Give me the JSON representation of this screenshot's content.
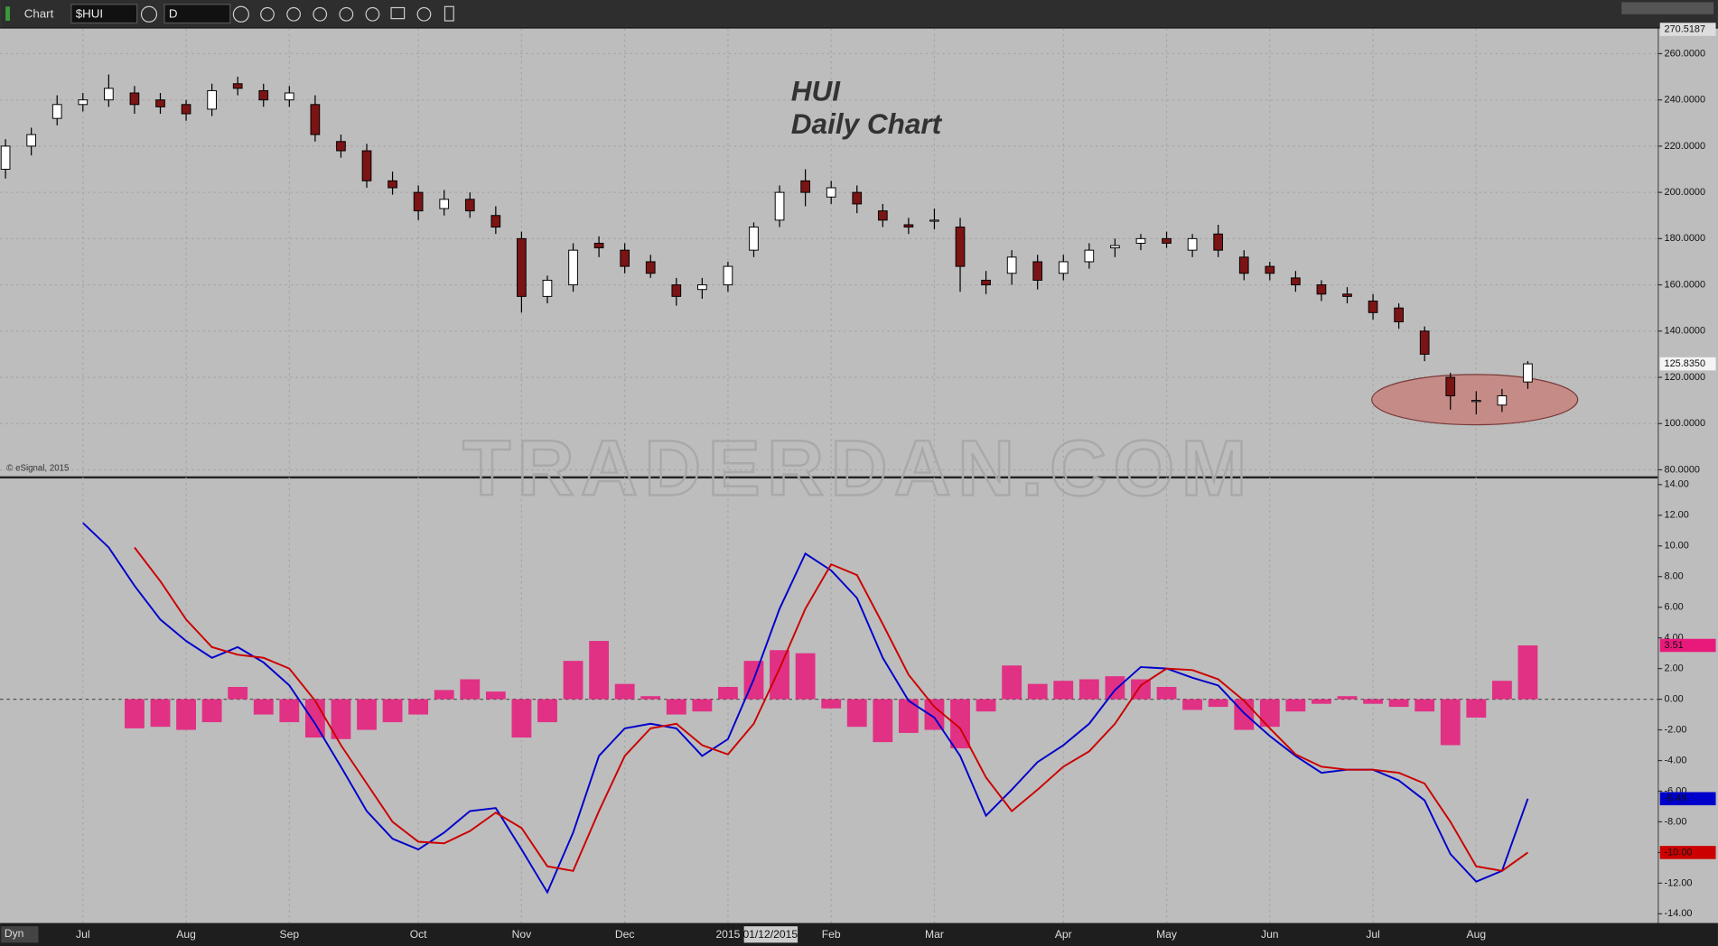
{
  "toolbar": {
    "title": "Chart",
    "symbol": "$HUI",
    "interval": "D"
  },
  "footer": {
    "mode": "Dyn",
    "cursor_date": "01/12/2015"
  },
  "chart_data": [
    {
      "type": "candlestick",
      "title": "HUI",
      "subtitle": "Daily Chart",
      "watermark": "TRADERDAN.COM",
      "source": "© eSignal, 2015",
      "categories": [
        null,
        null,
        null,
        "Jul",
        null,
        null,
        null,
        "Aug",
        null,
        null,
        null,
        "Sep",
        null,
        null,
        null,
        null,
        "Oct",
        null,
        null,
        null,
        "Nov",
        null,
        null,
        null,
        "Dec",
        null,
        null,
        null,
        "2015",
        null,
        null,
        null,
        "Feb",
        null,
        null,
        null,
        "Mar",
        null,
        null,
        null,
        null,
        "Apr",
        null,
        null,
        null,
        "May",
        null,
        null,
        null,
        "Jun",
        null,
        null,
        null,
        "Jul",
        null,
        null,
        null,
        "Aug",
        null,
        null
      ],
      "open": [
        210,
        220,
        232,
        238,
        240,
        243,
        240,
        238,
        236,
        247,
        244,
        240,
        238,
        222,
        218,
        205,
        200,
        193,
        197,
        190,
        180,
        155,
        160,
        178,
        175,
        170,
        160,
        158,
        160,
        175,
        188,
        205,
        198,
        200,
        192,
        186,
        188,
        185,
        162,
        165,
        170,
        165,
        170,
        176,
        178,
        180,
        175,
        182,
        172,
        168,
        163,
        160,
        156,
        153,
        150,
        140,
        120,
        110,
        108,
        118
      ],
      "high": [
        223,
        228,
        242,
        243,
        251,
        246,
        243,
        240,
        247,
        250,
        247,
        246,
        242,
        225,
        221,
        209,
        203,
        201,
        200,
        194,
        183,
        164,
        178,
        181,
        178,
        173,
        163,
        163,
        170,
        187,
        203,
        210,
        205,
        203,
        195,
        189,
        193,
        189,
        166,
        175,
        173,
        173,
        178,
        180,
        182,
        183,
        182,
        186,
        175,
        170,
        166,
        162,
        159,
        156,
        152,
        142,
        122,
        114,
        115,
        127
      ],
      "low": [
        206,
        216,
        229,
        235,
        237,
        234,
        234,
        231,
        233,
        242,
        237,
        237,
        222,
        215,
        202,
        199,
        188,
        190,
        189,
        182,
        148,
        152,
        157,
        172,
        165,
        163,
        151,
        154,
        157,
        172,
        185,
        194,
        195,
        191,
        185,
        182,
        184,
        157,
        156,
        160,
        158,
        162,
        167,
        172,
        175,
        176,
        172,
        172,
        162,
        162,
        157,
        153,
        152,
        145,
        141,
        127,
        106,
        104,
        105,
        115
      ],
      "close": [
        220,
        225,
        238,
        240,
        245,
        238,
        237,
        234,
        244,
        245,
        240,
        243,
        225,
        218,
        205,
        202,
        192,
        197,
        192,
        185,
        155,
        162,
        175,
        176,
        168,
        165,
        155,
        160,
        168,
        185,
        200,
        200,
        202,
        195,
        188,
        185,
        188,
        168,
        160,
        172,
        162,
        170,
        175,
        177,
        180,
        178,
        180,
        175,
        165,
        165,
        160,
        156,
        155,
        148,
        144,
        130,
        112,
        110,
        112,
        125.835
      ],
      "up_color": "#ffffff",
      "down_color": "#7b1414",
      "scale_high": 270.5187,
      "last_value": {
        "value": 125.835,
        "label": "125.8350"
      },
      "ylim": [
        77.2,
        270.9
      ],
      "yticks": [
        {
          "value": 80,
          "label": "80.0000"
        },
        {
          "value": 100,
          "label": "100.0000"
        },
        {
          "value": 120,
          "label": "120.0000"
        },
        {
          "value": 140,
          "label": "140.0000"
        },
        {
          "value": 160,
          "label": "160.0000"
        },
        {
          "value": 180,
          "label": "180.0000"
        },
        {
          "value": 200,
          "label": "200.0000"
        },
        {
          "value": 220,
          "label": "220.0000"
        },
        {
          "value": 240,
          "label": "240.0000"
        },
        {
          "value": 260,
          "label": "260.0000"
        }
      ],
      "grid": true
    },
    {
      "type": "macd",
      "series": [
        {
          "color": "#e8197a",
          "kind": "histogram",
          "last_label": "3.51",
          "values": [
            null,
            null,
            null,
            null,
            null,
            -1.9,
            -1.8,
            -2.0,
            -1.5,
            0.8,
            -1.0,
            -1.5,
            -2.5,
            -2.6,
            -2.0,
            -1.5,
            -1.0,
            0.6,
            1.3,
            0.5,
            -2.5,
            -1.5,
            2.5,
            3.8,
            1.0,
            0.2,
            -1.0,
            -0.8,
            0.8,
            2.5,
            3.2,
            3.0,
            -0.6,
            -1.8,
            -2.8,
            -2.2,
            -2.0,
            -3.2,
            -0.8,
            2.2,
            1.0,
            1.2,
            1.3,
            1.5,
            1.3,
            0.8,
            -0.7,
            -0.5,
            -2.0,
            -1.8,
            -0.8,
            -0.3,
            0.2,
            -0.3,
            -0.5,
            -0.8,
            -3.0,
            -1.2,
            1.2,
            3.51
          ]
        },
        {
          "color": "#0000cc",
          "kind": "line",
          "last_label": "-6.49",
          "values": [
            null,
            null,
            null,
            11.5,
            9.9,
            7.4,
            5.2,
            3.8,
            2.7,
            3.4,
            2.4,
            0.9,
            -1.6,
            -4.4,
            -7.3,
            -9.1,
            -9.8,
            -8.7,
            -7.3,
            -7.1,
            -9.8,
            -12.6,
            -8.7,
            -3.7,
            -1.9,
            -1.6,
            -1.9,
            -3.7,
            -2.6,
            1.3,
            5.9,
            9.5,
            8.4,
            6.6,
            2.7,
            -0.1,
            -1.2,
            -3.7,
            -7.6,
            -5.9,
            -4.1,
            -3.0,
            -1.6,
            0.6,
            2.1,
            2.0,
            1.4,
            0.9,
            -0.9,
            -2.4,
            -3.7,
            -4.8,
            -4.6,
            -4.6,
            -5.3,
            -6.6,
            -10.1,
            -11.9,
            -11.2,
            -6.49
          ]
        },
        {
          "color": "#cc0000",
          "kind": "line",
          "last_label": "-10.00",
          "values": [
            null,
            null,
            null,
            null,
            null,
            9.9,
            7.7,
            5.2,
            3.4,
            2.9,
            2.7,
            2.0,
            -0.1,
            -3.0,
            -5.5,
            -8.0,
            -9.3,
            -9.4,
            -8.6,
            -7.4,
            -8.4,
            -10.9,
            -11.2,
            -7.3,
            -3.7,
            -1.9,
            -1.6,
            -3.0,
            -3.6,
            -1.6,
            2.0,
            5.9,
            8.8,
            8.1,
            4.9,
            1.6,
            -0.5,
            -1.9,
            -5.1,
            -7.3,
            -5.9,
            -4.4,
            -3.4,
            -1.6,
            0.9,
            2.0,
            1.9,
            1.3,
            -0.1,
            -1.9,
            -3.6,
            -4.4,
            -4.6,
            -4.6,
            -4.8,
            -5.5,
            -8.0,
            -10.9,
            -11.2,
            -10
          ]
        }
      ],
      "ylim": [
        -14.6,
        14.4
      ],
      "yticks": [
        {
          "value": -14,
          "label": "-14.00"
        },
        {
          "value": -12,
          "label": "-12.00"
        },
        {
          "value": -10,
          "label": "-10.00"
        },
        {
          "value": -8,
          "label": "-8.00"
        },
        {
          "value": -6,
          "label": "-6.00"
        },
        {
          "value": -4,
          "label": "-4.00"
        },
        {
          "value": -2,
          "label": "-2.00"
        },
        {
          "value": 0,
          "label": "0.00"
        },
        {
          "value": 2,
          "label": "2.00"
        },
        {
          "value": 4,
          "label": "4.00"
        },
        {
          "value": 6,
          "label": "6.00"
        },
        {
          "value": 8,
          "label": "8.00"
        },
        {
          "value": 10,
          "label": "10.00"
        },
        {
          "value": 12,
          "label": "12.00"
        },
        {
          "value": 14,
          "label": "14.00"
        }
      ]
    }
  ]
}
